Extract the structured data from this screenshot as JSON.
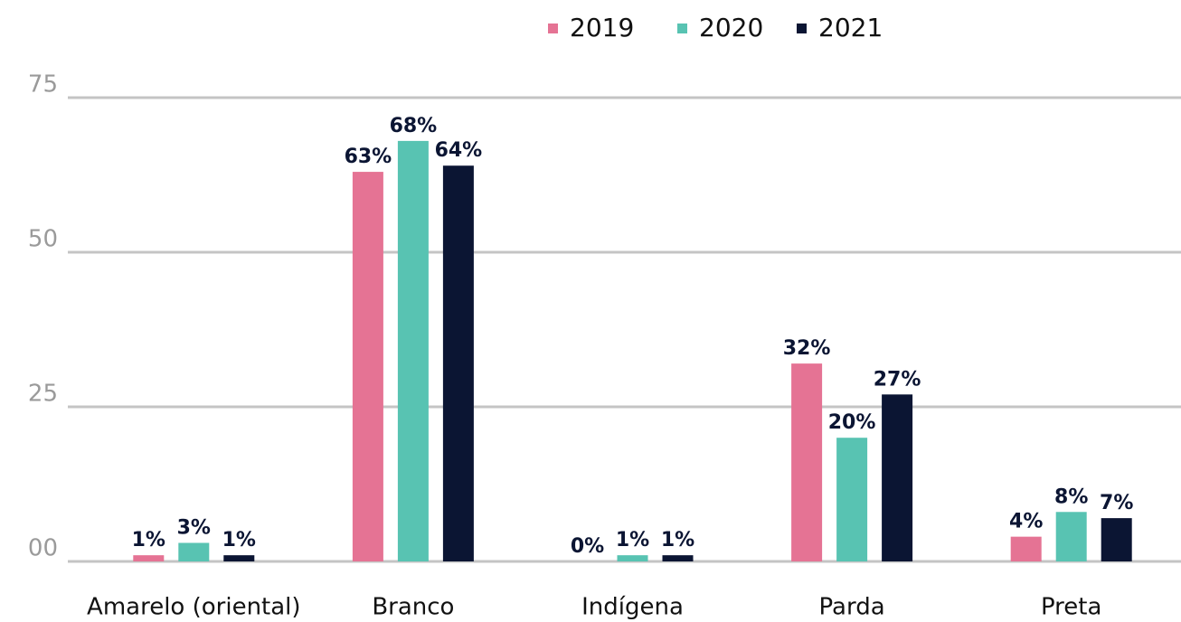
{
  "chart_data": {
    "type": "bar",
    "categories": [
      "Amarelo (oriental)",
      "Branco",
      "Indígena",
      "Parda",
      "Preta"
    ],
    "series": [
      {
        "name": "2019",
        "color": "#e57394",
        "values": [
          1,
          63,
          0,
          32,
          4
        ],
        "value_labels": [
          "1%",
          "63%",
          "0%",
          "32%",
          "4%"
        ]
      },
      {
        "name": "2020",
        "color": "#58c3b2",
        "values": [
          3,
          68,
          1,
          20,
          8
        ],
        "value_labels": [
          "3%",
          "68%",
          "1%",
          "20%",
          "8%"
        ]
      },
      {
        "name": "2021",
        "color": "#0b1533",
        "values": [
          1,
          64,
          1,
          27,
          7
        ],
        "value_labels": [
          "1%",
          "64%",
          "1%",
          "27%",
          "7%"
        ]
      }
    ],
    "ylim": [
      0,
      75
    ],
    "yticks": [
      {
        "value": 0,
        "label": "00"
      },
      25,
      50,
      75
    ],
    "grid": true,
    "legend": "top"
  }
}
